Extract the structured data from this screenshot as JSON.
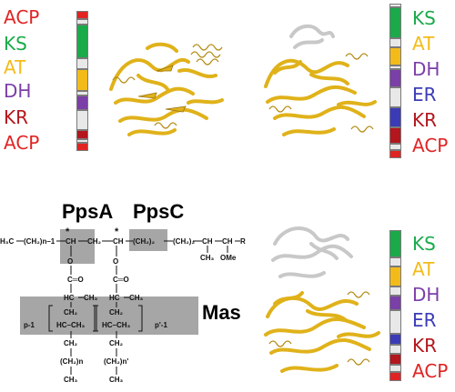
{
  "colors": {
    "ACP": "#e02424",
    "KS": "#1aaa4a",
    "AT": "#f3bb1a",
    "DH": "#7b3fa8",
    "ER": "#3b3bb8",
    "KR": "#b4161d",
    "linker": "#e8e8e8",
    "helix": "#e0b21a",
    "helix_gray": "#c8c8c8",
    "box_gray": "#a6a6a6"
  },
  "panel_top_left": {
    "domains": [
      "ACP",
      "KS",
      "AT",
      "DH",
      "KR",
      "ACP"
    ],
    "protein_icon": "ks-at-ribbon"
  },
  "panel_top_right": {
    "domains": [
      "KS",
      "AT",
      "DH",
      "ER",
      "KR",
      "ACP"
    ],
    "protein_icon": "ks-at-dh-ribbon"
  },
  "panel_bottom_right": {
    "domains": [
      "KS",
      "AT",
      "DH",
      "ER",
      "KR",
      "ACP"
    ],
    "protein_icon": "mas-ribbon"
  },
  "chemistry": {
    "label_ppsa": "PpsA",
    "label_ppsc": "PpsC",
    "label_mas": "Mas",
    "chain_h3c": "H₃C",
    "chain_ch2_n1": "(CH₂)n–1",
    "chain_ch": "CH",
    "chain_ch2": "CH₂",
    "chain_ch2_2": "(CH₂)₂",
    "chain_ch_r": "CH",
    "chain_ch_r2": "CH",
    "chain_r": "R",
    "chain_ch3": "CH₃",
    "chain_ome": "OMe",
    "ester_o": "O",
    "ester_co": "C═O",
    "ester_hc": "HC",
    "ester_ch3": "CH₃",
    "unit_ch2": "CH₂",
    "unit_ch_ch3": "HC–CH₃",
    "unit_p1": "p-1",
    "unit_p2": "p'-1",
    "tail_ch2": "CH₂",
    "tail_ch2_n": "(CH₂)n",
    "tail_ch2_n2": "(CH₂)n'",
    "tail_ch3": "CH₃",
    "star": "*"
  }
}
